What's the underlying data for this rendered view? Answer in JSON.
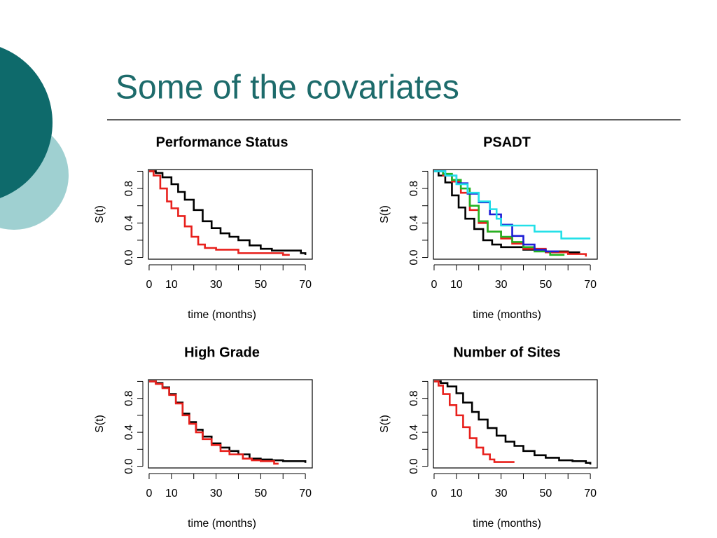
{
  "title": "Some of the covariates",
  "chart_data": [
    {
      "type": "line",
      "step": true,
      "title": "Performance Status",
      "x_label": "time (months)",
      "y_label": "S(t)",
      "xlim": [
        -0.3,
        73.1
      ],
      "ylim": [
        -0.02,
        1.02
      ],
      "xticks": [
        0,
        10,
        30,
        50,
        70
      ],
      "xticks_unlabeled": [
        20,
        40,
        60
      ],
      "yticks": [
        {
          "value": 0,
          "label": "0.0"
        },
        0.4,
        0.8
      ],
      "yticks_unlabeled": [
        0.2,
        0.6,
        1.0
      ],
      "series": [
        {
          "color": "#000000",
          "x": [
            0,
            3,
            6,
            10,
            13,
            16,
            20,
            24,
            28,
            32,
            36,
            40,
            45,
            50,
            55,
            60,
            68,
            70
          ],
          "values": [
            1,
            0.98,
            0.93,
            0.85,
            0.76,
            0.67,
            0.55,
            0.42,
            0.34,
            0.28,
            0.24,
            0.2,
            0.14,
            0.1,
            0.08,
            0.08,
            0.05,
            0.03
          ]
        },
        {
          "color": "#e8201c",
          "x": [
            0,
            2,
            5,
            8,
            10,
            13,
            16,
            19,
            22,
            25,
            30,
            40,
            50,
            60,
            63
          ],
          "values": [
            1,
            0.95,
            0.8,
            0.65,
            0.57,
            0.48,
            0.36,
            0.24,
            0.15,
            0.11,
            0.09,
            0.05,
            0.05,
            0.03,
            0.03
          ]
        }
      ]
    },
    {
      "type": "line",
      "step": true,
      "title": "PSADT",
      "x_label": "time (months)",
      "y_label": "S(t)",
      "xlim": [
        -0.3,
        73.1
      ],
      "ylim": [
        -0.02,
        1.02
      ],
      "xticks": [
        0,
        10,
        30,
        50,
        70
      ],
      "xticks_unlabeled": [
        20,
        40,
        60
      ],
      "yticks": [
        {
          "value": 0,
          "label": "0.0"
        },
        0.4,
        0.8
      ],
      "yticks_unlabeled": [
        0.2,
        0.6,
        1.0
      ],
      "series": [
        {
          "color": "#000000",
          "x": [
            0,
            2,
            5,
            8,
            11,
            14,
            18,
            22,
            26,
            30,
            40,
            50,
            60,
            65
          ],
          "values": [
            1,
            0.95,
            0.87,
            0.72,
            0.58,
            0.45,
            0.33,
            0.2,
            0.15,
            0.12,
            0.09,
            0.07,
            0.06,
            0.05
          ]
        },
        {
          "color": "#e8201c",
          "x": [
            0,
            4,
            8,
            12,
            16,
            20,
            24,
            30,
            35,
            40,
            50,
            60,
            68
          ],
          "values": [
            1,
            0.95,
            0.88,
            0.75,
            0.55,
            0.4,
            0.3,
            0.22,
            0.16,
            0.1,
            0.06,
            0.04,
            0.01
          ]
        },
        {
          "color": "#22b422",
          "x": [
            0,
            4,
            8,
            12,
            16,
            20,
            24,
            30,
            35,
            40,
            45,
            52,
            58
          ],
          "values": [
            1,
            0.97,
            0.9,
            0.8,
            0.6,
            0.42,
            0.3,
            0.24,
            0.18,
            0.12,
            0.07,
            0.03,
            0.02
          ]
        },
        {
          "color": "#1c1cd6",
          "x": [
            0,
            5,
            10,
            15,
            20,
            25,
            30,
            35,
            40,
            45,
            50,
            56
          ],
          "values": [
            1,
            0.95,
            0.86,
            0.74,
            0.64,
            0.5,
            0.38,
            0.25,
            0.15,
            0.09,
            0.07,
            0.07
          ]
        },
        {
          "color": "#22e0e8",
          "x": [
            0,
            5,
            10,
            15,
            20,
            25,
            28,
            30,
            40,
            45,
            55,
            57,
            70
          ],
          "values": [
            1,
            0.95,
            0.85,
            0.75,
            0.65,
            0.56,
            0.45,
            0.37,
            0.37,
            0.3,
            0.3,
            0.22,
            0.22
          ]
        }
      ]
    },
    {
      "type": "line",
      "step": true,
      "title": "High Grade",
      "x_label": "time (months)",
      "y_label": "S(t)",
      "xlim": [
        -0.3,
        73.1
      ],
      "ylim": [
        -0.02,
        1.02
      ],
      "xticks": [
        0,
        10,
        30,
        50,
        70
      ],
      "xticks_unlabeled": [
        20,
        40,
        60
      ],
      "yticks": [
        {
          "value": 0,
          "label": "0.0"
        },
        0.4,
        0.8
      ],
      "yticks_unlabeled": [
        0.2,
        0.6,
        1.0
      ],
      "series": [
        {
          "color": "#000000",
          "x": [
            0,
            3,
            6,
            9,
            12,
            15,
            18,
            21,
            24,
            28,
            32,
            36,
            40,
            45,
            50,
            55,
            60,
            70
          ],
          "values": [
            1,
            0.98,
            0.93,
            0.85,
            0.75,
            0.62,
            0.52,
            0.43,
            0.35,
            0.27,
            0.22,
            0.18,
            0.14,
            0.09,
            0.08,
            0.07,
            0.06,
            0.04
          ]
        },
        {
          "color": "#e8201c",
          "x": [
            0,
            3,
            6,
            9,
            12,
            15,
            18,
            21,
            24,
            28,
            32,
            36,
            42,
            46,
            50,
            56,
            58
          ],
          "values": [
            1,
            0.97,
            0.92,
            0.84,
            0.74,
            0.6,
            0.5,
            0.4,
            0.32,
            0.25,
            0.18,
            0.14,
            0.09,
            0.07,
            0.06,
            0.03,
            0.03
          ]
        }
      ]
    },
    {
      "type": "line",
      "step": true,
      "title": "Number of Sites",
      "x_label": "time (months)",
      "y_label": "S(t)",
      "xlim": [
        -0.3,
        73.1
      ],
      "ylim": [
        -0.02,
        1.02
      ],
      "xticks": [
        0,
        10,
        30,
        50,
        70
      ],
      "xticks_unlabeled": [
        20,
        40,
        60
      ],
      "yticks": [
        {
          "value": 0,
          "label": "0.0"
        },
        0.4,
        0.8
      ],
      "yticks_unlabeled": [
        0.2,
        0.6,
        1.0
      ],
      "series": [
        {
          "color": "#000000",
          "x": [
            0,
            3,
            6,
            10,
            13,
            17,
            20,
            24,
            28,
            32,
            36,
            40,
            45,
            50,
            56,
            62,
            68,
            70
          ],
          "values": [
            1,
            0.98,
            0.94,
            0.86,
            0.75,
            0.64,
            0.55,
            0.45,
            0.36,
            0.29,
            0.24,
            0.18,
            0.13,
            0.1,
            0.07,
            0.06,
            0.04,
            0.02
          ]
        },
        {
          "color": "#e8201c",
          "x": [
            0,
            2,
            4,
            7,
            10,
            13,
            16,
            19,
            22,
            25,
            27,
            36
          ],
          "values": [
            1,
            0.95,
            0.85,
            0.72,
            0.6,
            0.46,
            0.33,
            0.22,
            0.14,
            0.08,
            0.05,
            0.05
          ]
        }
      ]
    }
  ]
}
